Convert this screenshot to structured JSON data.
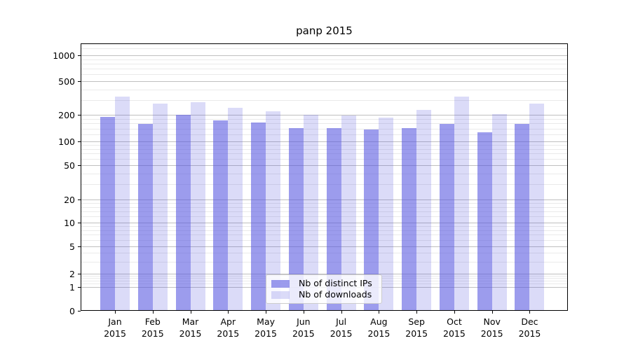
{
  "title": "panp 2015",
  "chart_data": {
    "type": "bar",
    "title": "panp 2015",
    "categories": [
      "Jan",
      "Feb",
      "Mar",
      "Apr",
      "May",
      "Jun",
      "Jul",
      "Aug",
      "Sep",
      "Oct",
      "Nov",
      "Dec"
    ],
    "category_year": "2015",
    "series": [
      {
        "name": "Nb of distinct IPs",
        "values": [
          186,
          156,
          196,
          170,
          161,
          139,
          139,
          134,
          139,
          155,
          125,
          156
        ]
      },
      {
        "name": "Nb of downloads",
        "values": [
          325,
          268,
          278,
          237,
          218,
          197,
          193,
          182,
          225,
          322,
          199,
          265
        ]
      }
    ],
    "xlabel": "",
    "ylabel": "",
    "yscale": "symlog",
    "ylim": [
      0,
      1400
    ],
    "y_ticks": [
      0,
      1,
      2,
      5,
      10,
      20,
      50,
      100,
      200,
      500,
      1000
    ],
    "y_minor_multipliers": [
      1.2,
      1.4,
      1.6,
      1.8,
      3,
      4,
      6,
      7,
      8,
      9
    ],
    "grid": true,
    "legend_position": "lower center"
  },
  "colors": {
    "ips_bar": "rgba(85,85,224,0.58)",
    "downloads_bar": "rgba(85,85,224,0.21)",
    "grid_major": "#bfbfbf",
    "grid_minor": "#eaeaea",
    "axis": "#000000",
    "background": "#ffffff",
    "legend_border": "#cccccc"
  }
}
